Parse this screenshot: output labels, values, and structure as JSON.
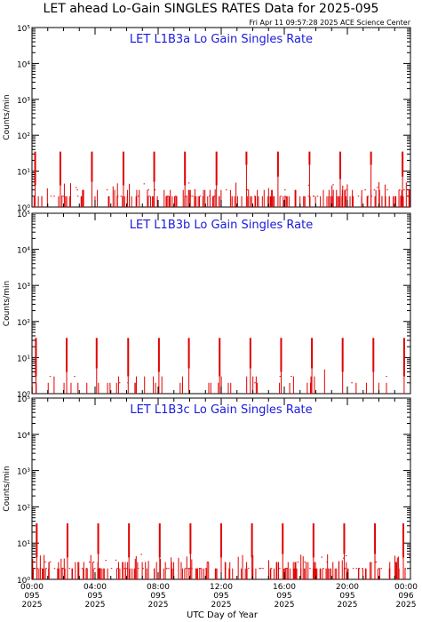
{
  "title": "LET ahead Lo-Gain SINGLES RATES Data for 2025-095",
  "timestamp": "Fri Apr 11 09:57:28 2025 ACE Science Center",
  "xlabel": "UTC Day of Year",
  "chart_data": [
    {
      "type": "line",
      "title": "LET L1B3a Lo Gain Singles Rate",
      "ylabel": "Counts/min",
      "yscale": "log",
      "ylim": [
        1,
        100000
      ],
      "xlim": [
        0,
        24
      ],
      "color": "#e00000",
      "spikes": [
        {
          "x": 0.2,
          "y": 35,
          "base": 4
        },
        {
          "x": 1.8,
          "y": 35,
          "base": 4
        },
        {
          "x": 3.8,
          "y": 35,
          "base": 5
        },
        {
          "x": 5.8,
          "y": 35,
          "base": 4
        },
        {
          "x": 7.75,
          "y": 35,
          "base": 5
        },
        {
          "x": 9.7,
          "y": 35,
          "base": 4
        },
        {
          "x": 11.7,
          "y": 35,
          "base": 4
        },
        {
          "x": 13.6,
          "y": 35,
          "base": 15
        },
        {
          "x": 15.6,
          "y": 35,
          "base": 7
        },
        {
          "x": 17.6,
          "y": 35,
          "base": 15
        },
        {
          "x": 19.55,
          "y": 35,
          "base": 6
        },
        {
          "x": 21.5,
          "y": 35,
          "base": 15
        },
        {
          "x": 23.5,
          "y": 35,
          "base": 7
        }
      ],
      "background_density": 0.75
    },
    {
      "type": "line",
      "title": "LET L1B3b Lo Gain Singles Rate",
      "ylabel": "Counts/min",
      "yscale": "log",
      "ylim": [
        1,
        100000
      ],
      "xlim": [
        0,
        24
      ],
      "color": "#e00000",
      "spikes": [
        {
          "x": 0.25,
          "y": 35,
          "base": 3
        },
        {
          "x": 2.2,
          "y": 35,
          "base": 4
        },
        {
          "x": 4.1,
          "y": 35,
          "base": 5
        },
        {
          "x": 6.1,
          "y": 35,
          "base": 3
        },
        {
          "x": 8.05,
          "y": 35,
          "base": 4
        },
        {
          "x": 9.95,
          "y": 35,
          "base": 5
        },
        {
          "x": 11.9,
          "y": 35,
          "base": 3
        },
        {
          "x": 13.85,
          "y": 35,
          "base": 5
        },
        {
          "x": 15.8,
          "y": 35,
          "base": 4
        },
        {
          "x": 17.75,
          "y": 35,
          "base": 5
        },
        {
          "x": 19.7,
          "y": 35,
          "base": 4
        },
        {
          "x": 21.65,
          "y": 35,
          "base": 4
        },
        {
          "x": 23.6,
          "y": 35,
          "base": 3
        }
      ],
      "background_density": 0.18
    },
    {
      "type": "line",
      "title": "LET L1B3c Lo Gain Singles Rate",
      "ylabel": "Counts/min",
      "yscale": "log",
      "ylim": [
        1,
        100000
      ],
      "xlim": [
        0,
        24
      ],
      "color": "#e00000",
      "spikes": [
        {
          "x": 0.3,
          "y": 35,
          "base": 4
        },
        {
          "x": 2.25,
          "y": 35,
          "base": 4
        },
        {
          "x": 4.2,
          "y": 35,
          "base": 5
        },
        {
          "x": 6.15,
          "y": 35,
          "base": 4
        },
        {
          "x": 8.1,
          "y": 35,
          "base": 4
        },
        {
          "x": 10.05,
          "y": 35,
          "base": 5
        },
        {
          "x": 12.0,
          "y": 35,
          "base": 4
        },
        {
          "x": 13.95,
          "y": 35,
          "base": 4
        },
        {
          "x": 15.9,
          "y": 35,
          "base": 5
        },
        {
          "x": 17.85,
          "y": 35,
          "base": 4
        },
        {
          "x": 19.8,
          "y": 35,
          "base": 5
        },
        {
          "x": 21.75,
          "y": 35,
          "base": 5
        },
        {
          "x": 23.55,
          "y": 35,
          "base": 4
        }
      ],
      "background_density": 0.85
    }
  ],
  "yticks": [
    "10⁰",
    "10¹",
    "10²",
    "10³",
    "10⁴",
    "10⁵"
  ],
  "xticks": [
    {
      "time": "00:00",
      "doy": "095",
      "year": "2025"
    },
    {
      "time": "04:00",
      "doy": "095",
      "year": "2025"
    },
    {
      "time": "08:00",
      "doy": "095",
      "year": "2025"
    },
    {
      "time": "12:00",
      "doy": "095",
      "year": "2025"
    },
    {
      "time": "16:00",
      "doy": "095",
      "year": "2025"
    },
    {
      "time": "20:00",
      "doy": "095",
      "year": "2025"
    },
    {
      "time": "00:00",
      "doy": "096",
      "year": "2025"
    }
  ]
}
